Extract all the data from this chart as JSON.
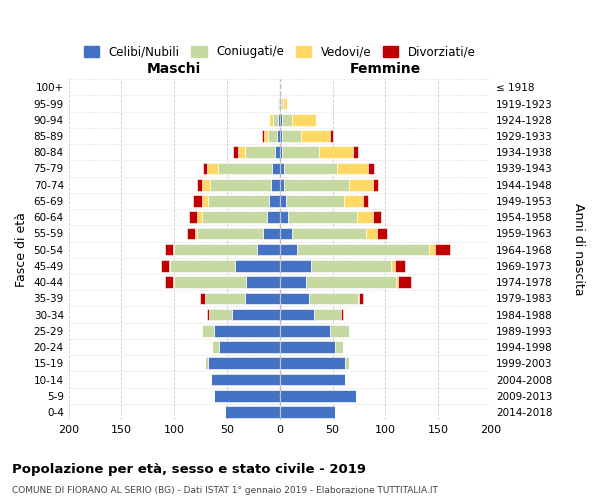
{
  "age_groups": [
    "0-4",
    "5-9",
    "10-14",
    "15-19",
    "20-24",
    "25-29",
    "30-34",
    "35-39",
    "40-44",
    "45-49",
    "50-54",
    "55-59",
    "60-64",
    "65-69",
    "70-74",
    "75-79",
    "80-84",
    "85-89",
    "90-94",
    "95-99",
    "100+"
  ],
  "birth_years": [
    "2014-2018",
    "2009-2013",
    "2004-2008",
    "1999-2003",
    "1994-1998",
    "1989-1993",
    "1984-1988",
    "1979-1983",
    "1974-1978",
    "1969-1973",
    "1964-1968",
    "1959-1963",
    "1954-1958",
    "1949-1953",
    "1944-1948",
    "1939-1943",
    "1934-1938",
    "1929-1933",
    "1924-1928",
    "1919-1923",
    "≤ 1918"
  ],
  "colors": {
    "celibi": "#4472C4",
    "coniugati": "#c5d9a0",
    "vedovi": "#FFD966",
    "divorziati": "#C00000"
  },
  "maschi": {
    "celibi": [
      52,
      62,
      65,
      68,
      58,
      62,
      45,
      33,
      32,
      42,
      22,
      16,
      12,
      10,
      8,
      7,
      5,
      3,
      2,
      1,
      0
    ],
    "coniugati": [
      0,
      0,
      0,
      3,
      6,
      12,
      22,
      38,
      68,
      62,
      78,
      62,
      62,
      58,
      58,
      52,
      28,
      8,
      4,
      1,
      0
    ],
    "vedovi": [
      0,
      0,
      0,
      0,
      0,
      0,
      0,
      0,
      1,
      1,
      1,
      2,
      4,
      6,
      8,
      10,
      7,
      4,
      4,
      1,
      0
    ],
    "divorziati": [
      0,
      0,
      0,
      0,
      0,
      0,
      2,
      5,
      8,
      8,
      8,
      8,
      8,
      8,
      4,
      4,
      4,
      2,
      0,
      0,
      0
    ]
  },
  "femmine": {
    "celibi": [
      52,
      72,
      62,
      62,
      52,
      48,
      32,
      28,
      25,
      30,
      16,
      12,
      8,
      6,
      4,
      4,
      2,
      2,
      2,
      1,
      0
    ],
    "coniugati": [
      0,
      0,
      0,
      4,
      8,
      18,
      26,
      46,
      85,
      75,
      125,
      70,
      65,
      55,
      62,
      50,
      35,
      18,
      10,
      2,
      0
    ],
    "vedovi": [
      0,
      0,
      0,
      0,
      0,
      0,
      0,
      1,
      2,
      4,
      6,
      10,
      15,
      18,
      22,
      30,
      32,
      28,
      22,
      4,
      1
    ],
    "divorziati": [
      0,
      0,
      0,
      0,
      0,
      0,
      2,
      4,
      12,
      10,
      14,
      10,
      8,
      5,
      5,
      5,
      5,
      2,
      0,
      0,
      0
    ]
  },
  "title": "Popolazione per età, sesso e stato civile - 2019",
  "subtitle": "COMUNE DI FIORANO AL SERIO (BG) - Dati ISTAT 1° gennaio 2019 - Elaborazione TUTTITALIA.IT",
  "xlabel_left": "Maschi",
  "xlabel_right": "Femmine",
  "ylabel_left": "Fasce di età",
  "ylabel_right": "Anni di nascita",
  "legend_labels": [
    "Celibi/Nubili",
    "Coniugati/e",
    "Vedovi/e",
    "Divorziati/e"
  ],
  "xlim": 200,
  "bg_color": "#ffffff",
  "grid_color": "#cccccc"
}
